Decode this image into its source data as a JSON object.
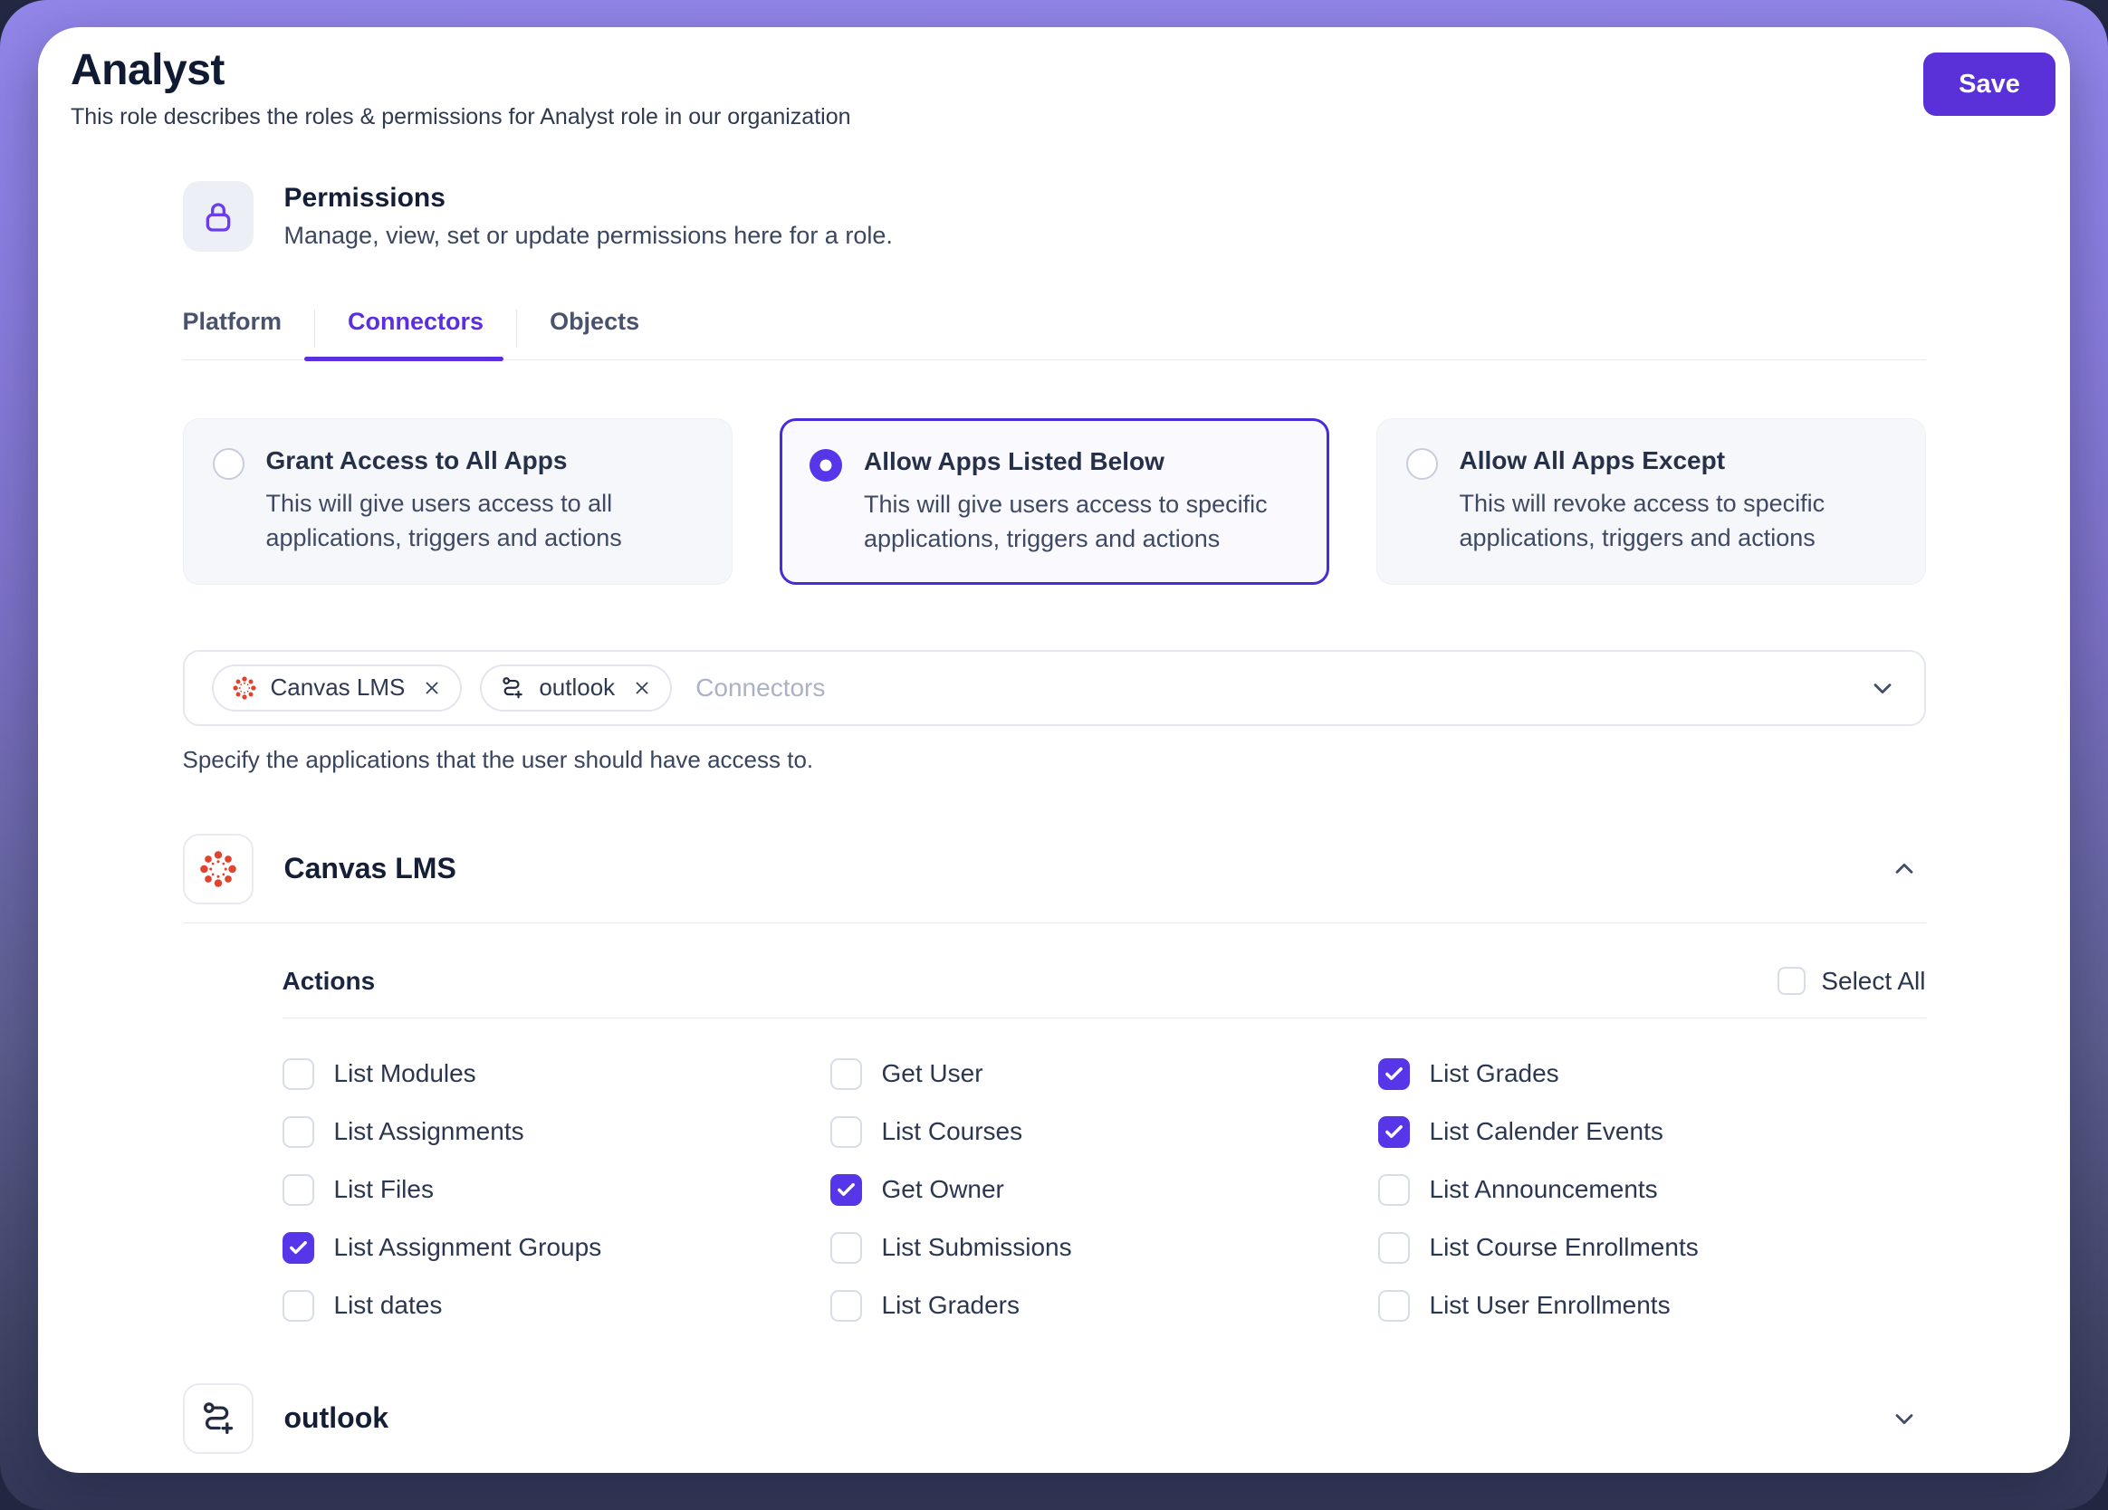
{
  "header": {
    "title": "Analyst",
    "subtitle": "This role describes the roles & permissions for Analyst role in our organization",
    "save_label": "Save"
  },
  "permissions": {
    "heading": "Permissions",
    "subheading": "Manage, view, set or update permissions here for a role.",
    "icon": "lock-icon"
  },
  "tabs": [
    {
      "label": "Platform",
      "active": false
    },
    {
      "label": "Connectors",
      "active": true
    },
    {
      "label": "Objects",
      "active": false
    }
  ],
  "access_options": [
    {
      "title": "Grant Access to All Apps",
      "description": "This will give users access to all applications, triggers and actions",
      "selected": false
    },
    {
      "title": "Allow Apps Listed Below",
      "description": "This will give users access to specific applications, triggers and actions",
      "selected": true
    },
    {
      "title": "Allow All Apps Except",
      "description": "This will revoke access to specific applications, triggers and actions",
      "selected": false
    }
  ],
  "connector_picker": {
    "chips": [
      {
        "label": "Canvas LMS",
        "icon": "canvas-logo-icon"
      },
      {
        "label": "outlook",
        "icon": "route-plus-icon"
      }
    ],
    "placeholder": "Connectors",
    "helper": "Specify the applications that the user should have access to.",
    "chevron": "chevron-down-icon"
  },
  "canvas_section": {
    "title": "Canvas LMS",
    "icon": "canvas-logo-icon",
    "chevron": "chevron-up-icon",
    "actions_label": "Actions",
    "select_all_label": "Select All",
    "select_all_checked": false,
    "columns": [
      [
        {
          "label": "List Modules",
          "checked": false
        },
        {
          "label": "List Assignments",
          "checked": false
        },
        {
          "label": "List Files",
          "checked": false
        },
        {
          "label": "List Assignment Groups",
          "checked": true
        },
        {
          "label": "List dates",
          "checked": false
        }
      ],
      [
        {
          "label": "Get User",
          "checked": false
        },
        {
          "label": "List Courses",
          "checked": false
        },
        {
          "label": "Get Owner",
          "checked": true
        },
        {
          "label": "List Submissions",
          "checked": false
        },
        {
          "label": "List Graders",
          "checked": false
        }
      ],
      [
        {
          "label": "List Grades",
          "checked": true
        },
        {
          "label": "List Calender Events",
          "checked": true
        },
        {
          "label": "List Announcements",
          "checked": false
        },
        {
          "label": "List Course Enrollments",
          "checked": false
        },
        {
          "label": "List User Enrollments",
          "checked": false
        }
      ]
    ]
  },
  "outlook_section": {
    "title": "outlook",
    "icon": "route-plus-icon",
    "chevron": "chevron-down-icon"
  },
  "colors": {
    "accent_purple": "#5636E8",
    "save_button": "#5A31D9",
    "selected_border": "#4B2BD9",
    "lock_purple": "#6A3DF1",
    "canvas_red": "#E0442F",
    "background_top": "#9286EA",
    "background_bottom": "#333857",
    "text_dark": "#141E36"
  }
}
